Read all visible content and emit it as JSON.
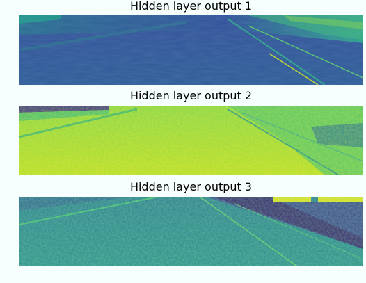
{
  "figure": {
    "panels": [
      {
        "title": "Hidden layer output 1",
        "colormap": "viridis",
        "dominant_tone": "dark-blue",
        "accent": "#3b5d9a"
      },
      {
        "title": "Hidden layer output 2",
        "colormap": "viridis",
        "dominant_tone": "yellow-green",
        "accent": "#a6d94a"
      },
      {
        "title": "Hidden layer output 3",
        "colormap": "viridis",
        "dominant_tone": "teal",
        "accent": "#2a8a8c"
      }
    ]
  }
}
